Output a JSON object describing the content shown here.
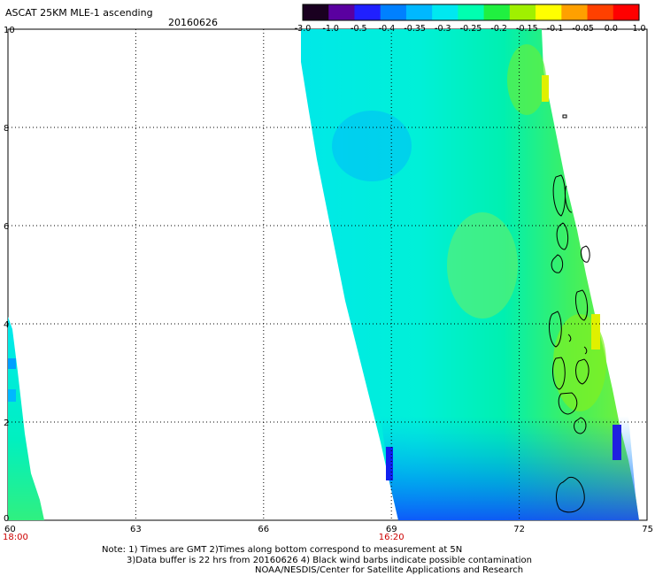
{
  "header": {
    "title": "ASCAT 25KM MLE-1 ascending",
    "date": "20160626"
  },
  "colorbar": {
    "labels": [
      "-3.0",
      "-1.0",
      "-0.5",
      "-0.4",
      "-0.35",
      "-0.3",
      "-0.25",
      "-0.2",
      "-0.15",
      "-0.1",
      "-0.05",
      "0.0",
      "1.0"
    ],
    "colors": [
      "#1a0020",
      "#5a00a0",
      "#2020ff",
      "#0080ff",
      "#00b8ff",
      "#00e8f0",
      "#00ffb0",
      "#20f040",
      "#a0f000",
      "#ffff00",
      "#ffa000",
      "#ff4000",
      "#ff0000"
    ]
  },
  "axes": {
    "x_ticks": [
      "60",
      "63",
      "66",
      "69",
      "72",
      "75"
    ],
    "y_ticks": [
      "0",
      "2",
      "4",
      "6",
      "8",
      "10"
    ],
    "x_range": [
      60,
      75
    ],
    "y_range": [
      0,
      10
    ],
    "grid": true
  },
  "time_labels": [
    {
      "text": "18:00",
      "lon": 60
    },
    {
      "text": "16:20",
      "lon": 69
    }
  ],
  "notes": {
    "line1": "Note: 1) Times are GMT 2)Times along bottom correspond to measurement at 5N",
    "line2": "3)Data buffer is 22 hrs from 20160626 4) Black wind barbs indicate possible contamination",
    "line3": "NOAA/NESDIS/Center for Satellite Applications and Research"
  },
  "colors": {
    "time_label": "#cc0000",
    "grid": "#000000"
  }
}
